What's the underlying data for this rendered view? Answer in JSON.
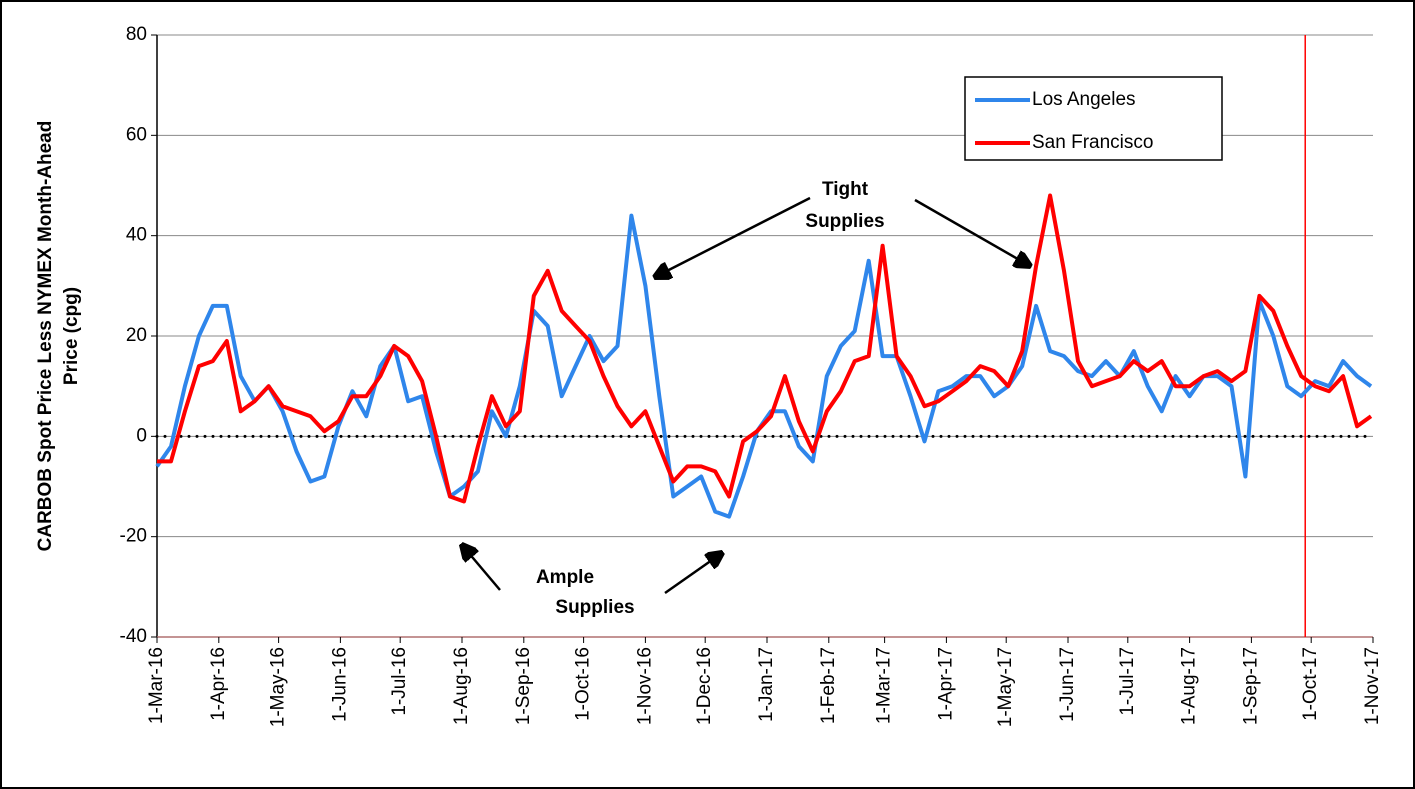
{
  "chart_data": {
    "type": "line",
    "y_label": [
      "CARBOB Spot Price Less NYMEX Month-Ahead",
      "Price (cpg)"
    ],
    "x": [
      "2016-03-01",
      "2016-03-08",
      "2016-03-15",
      "2016-03-22",
      "2016-03-29",
      "2016-04-05",
      "2016-04-12",
      "2016-04-19",
      "2016-04-26",
      "2016-05-03",
      "2016-05-10",
      "2016-05-17",
      "2016-05-24",
      "2016-05-31",
      "2016-06-07",
      "2016-06-14",
      "2016-06-21",
      "2016-06-28",
      "2016-07-05",
      "2016-07-12",
      "2016-07-19",
      "2016-07-26",
      "2016-08-02",
      "2016-08-09",
      "2016-08-16",
      "2016-08-23",
      "2016-08-30",
      "2016-09-06",
      "2016-09-13",
      "2016-09-20",
      "2016-09-27",
      "2016-10-04",
      "2016-10-11",
      "2016-10-18",
      "2016-10-25",
      "2016-11-01",
      "2016-11-08",
      "2016-11-15",
      "2016-11-22",
      "2016-11-29",
      "2016-12-06",
      "2016-12-13",
      "2016-12-20",
      "2016-12-27",
      "2017-01-03",
      "2017-01-10",
      "2017-01-17",
      "2017-01-24",
      "2017-01-31",
      "2017-02-07",
      "2017-02-14",
      "2017-02-21",
      "2017-02-28",
      "2017-03-07",
      "2017-03-14",
      "2017-03-21",
      "2017-03-28",
      "2017-04-04",
      "2017-04-11",
      "2017-04-18",
      "2017-04-25",
      "2017-05-02",
      "2017-05-09",
      "2017-05-16",
      "2017-05-23",
      "2017-05-30",
      "2017-06-06",
      "2017-06-13",
      "2017-06-20",
      "2017-06-27",
      "2017-07-04",
      "2017-07-11",
      "2017-07-18",
      "2017-07-25",
      "2017-08-01",
      "2017-08-08",
      "2017-08-15",
      "2017-08-22",
      "2017-08-29",
      "2017-09-05",
      "2017-09-12",
      "2017-09-19",
      "2017-09-26",
      "2017-10-03",
      "2017-10-10",
      "2017-10-17",
      "2017-10-24",
      "2017-10-31"
    ],
    "series": [
      {
        "name": "Los Angeles",
        "color": "#2f86eb",
        "values": [
          -6,
          -2,
          10,
          20,
          26,
          26,
          12,
          7,
          10,
          5,
          -3,
          -9,
          -8,
          2,
          9,
          4,
          14,
          18,
          7,
          8,
          -3,
          -12,
          -10,
          -7,
          5,
          0,
          10,
          25,
          22,
          8,
          14,
          20,
          15,
          18,
          44,
          30,
          8,
          -12,
          -10,
          -8,
          -15,
          -16,
          -8,
          1,
          5,
          5,
          -2,
          -5,
          12,
          18,
          21,
          35,
          16,
          16,
          8,
          -1,
          9,
          10,
          12,
          12,
          8,
          10,
          14,
          26,
          17,
          16,
          13,
          12,
          15,
          12,
          17,
          10,
          5,
          12,
          8,
          12,
          12,
          10,
          -8,
          27,
          20,
          10,
          8,
          11,
          10,
          15,
          12,
          10
        ]
      },
      {
        "name": "San Francisco",
        "color": "#ff0000",
        "values": [
          -5,
          -5,
          5,
          14,
          15,
          19,
          5,
          7,
          10,
          6,
          5,
          4,
          1,
          3,
          8,
          8,
          12,
          18,
          16,
          11,
          0,
          -12,
          -13,
          -2,
          8,
          2,
          5,
          28,
          33,
          25,
          22,
          19,
          12,
          6,
          2,
          5,
          -2,
          -9,
          -6,
          -6,
          -7,
          -12,
          -1,
          1,
          4,
          12,
          3,
          -3,
          5,
          9,
          15,
          16,
          38,
          16,
          12,
          6,
          7,
          9,
          11,
          14,
          13,
          10,
          17,
          34,
          48,
          33,
          15,
          10,
          11,
          12,
          15,
          13,
          15,
          10,
          10,
          12,
          13,
          11,
          13,
          28,
          25,
          18,
          12,
          10,
          9,
          12,
          2,
          4
        ]
      }
    ],
    "xlim": [
      "2016-03-01",
      "2017-11-01"
    ],
    "xticks": [
      {
        "value": "2016-03-01",
        "label": "1-Mar-16"
      },
      {
        "value": "2016-04-01",
        "label": "1-Apr-16"
      },
      {
        "value": "2016-05-01",
        "label": "1-May-16"
      },
      {
        "value": "2016-06-01",
        "label": "1-Jun-16"
      },
      {
        "value": "2016-07-01",
        "label": "1-Jul-16"
      },
      {
        "value": "2016-08-01",
        "label": "1-Aug-16"
      },
      {
        "value": "2016-09-01",
        "label": "1-Sep-16"
      },
      {
        "value": "2016-10-01",
        "label": "1-Oct-16"
      },
      {
        "value": "2016-11-01",
        "label": "1-Nov-16"
      },
      {
        "value": "2016-12-01",
        "label": "1-Dec-16"
      },
      {
        "value": "2017-01-01",
        "label": "1-Jan-17"
      },
      {
        "value": "2017-02-01",
        "label": "1-Feb-17"
      },
      {
        "value": "2017-03-01",
        "label": "1-Mar-17"
      },
      {
        "value": "2017-04-01",
        "label": "1-Apr-17"
      },
      {
        "value": "2017-05-01",
        "label": "1-May-17"
      },
      {
        "value": "2017-06-01",
        "label": "1-Jun-17"
      },
      {
        "value": "2017-07-01",
        "label": "1-Jul-17"
      },
      {
        "value": "2017-08-01",
        "label": "1-Aug-17"
      },
      {
        "value": "2017-09-01",
        "label": "1-Sep-17"
      },
      {
        "value": "2017-10-01",
        "label": "1-Oct-17"
      },
      {
        "value": "2017-11-01",
        "label": "1-Nov-17"
      }
    ],
    "ylim": [
      -40,
      80
    ],
    "yticks": [
      -40,
      -20,
      0,
      20,
      40,
      60,
      80
    ],
    "grid": true,
    "zero_line": 0,
    "vline": "2017-09-28",
    "vline_color": "#ff0000",
    "legend": "upper right",
    "annotations": [
      {
        "text": [
          "Tight",
          "Supplies"
        ]
      },
      {
        "text": [
          "Ample",
          "Supplies"
        ]
      }
    ]
  }
}
